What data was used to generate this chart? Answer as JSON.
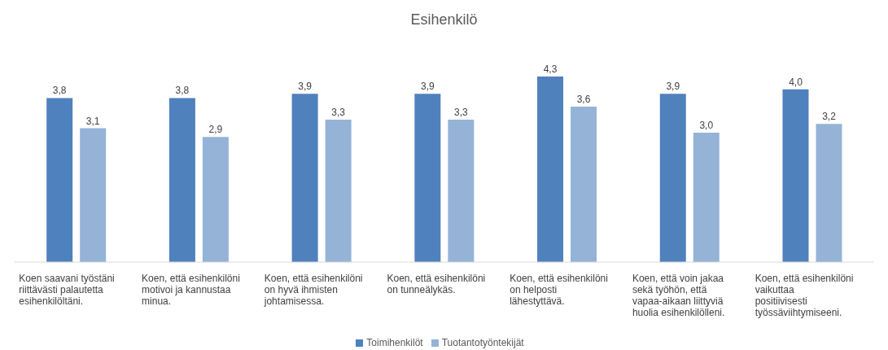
{
  "chart_data": {
    "type": "bar",
    "title": "Esihenkilö",
    "categories": [
      "Koen saavani työstäni riittävästi palautetta esihenkilöltäni.",
      "Koen, että esihenkilöni motivoi ja kannustaa minua.",
      "Koen, että esihenkilöni on hyvä ihmisten johtamisessa.",
      "Koen, että esihenkilöni on tunneälykäs.",
      "Koen, että esihenkilöni on helposti lähestyttävä.",
      "Koen, että voin jakaa sekä työhön, että vapaa-aikaan liittyviä huolia esihenkilölleni.",
      "Koen, että esihenkilöni vaikuttaa positiivisesti työssäviihtymiseeni."
    ],
    "series": [
      {
        "name": "Toimihenkilöt",
        "color": "#4f81bd",
        "values": [
          3.8,
          3.8,
          3.9,
          3.9,
          4.3,
          3.9,
          4.0
        ],
        "value_labels": [
          "3,8",
          "3,8",
          "3,9",
          "3,9",
          "4,3",
          "3,9",
          "4,0"
        ]
      },
      {
        "name": "Tuotantotyöntekijät",
        "color": "#95b3d7",
        "values": [
          3.1,
          2.9,
          3.3,
          3.3,
          3.6,
          3.0,
          3.2
        ],
        "value_labels": [
          "3,1",
          "2,9",
          "3,3",
          "3,3",
          "3,6",
          "3,0",
          "3,2"
        ]
      }
    ],
    "legend": "bottom",
    "grid": false
  }
}
